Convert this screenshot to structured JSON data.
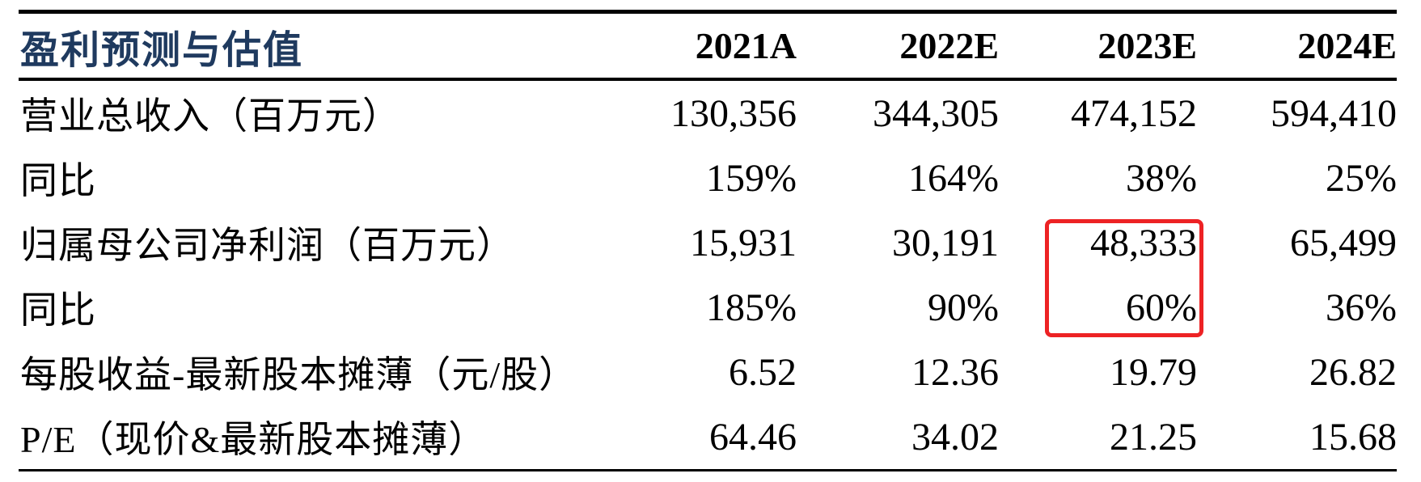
{
  "colors": {
    "background": "#ffffff",
    "title_text": "#1f3a5f",
    "body_text": "#000000",
    "rule": "#000000",
    "highlight_border": "#ed2224"
  },
  "table": {
    "title": "盈利预测与估值",
    "columns": [
      "2021A",
      "2022E",
      "2023E",
      "2024E"
    ],
    "rows": [
      {
        "label": "营业总收入（百万元）",
        "values": [
          "130,356",
          "344,305",
          "474,152",
          "594,410"
        ]
      },
      {
        "label": "同比",
        "values": [
          "159%",
          "164%",
          "38%",
          "25%"
        ]
      },
      {
        "label": "归属母公司净利润（百万元）",
        "values": [
          "15,931",
          "30,191",
          "48,333",
          "65,499"
        ]
      },
      {
        "label": "同比",
        "values": [
          "185%",
          "90%",
          "60%",
          "36%"
        ]
      },
      {
        "label": "每股收益-最新股本摊薄（元/股）",
        "values": [
          "6.52",
          "12.36",
          "19.79",
          "26.82"
        ]
      },
      {
        "label": "P/E（现价&最新股本摊薄）",
        "values": [
          "64.46",
          "34.02",
          "21.25",
          "15.68"
        ]
      }
    ],
    "highlight": {
      "column": "2023E",
      "highlighted_values": [
        "48,333",
        "60%"
      ],
      "rows_covered": [
        "归属母公司净利润（百万元）",
        "同比"
      ]
    }
  }
}
